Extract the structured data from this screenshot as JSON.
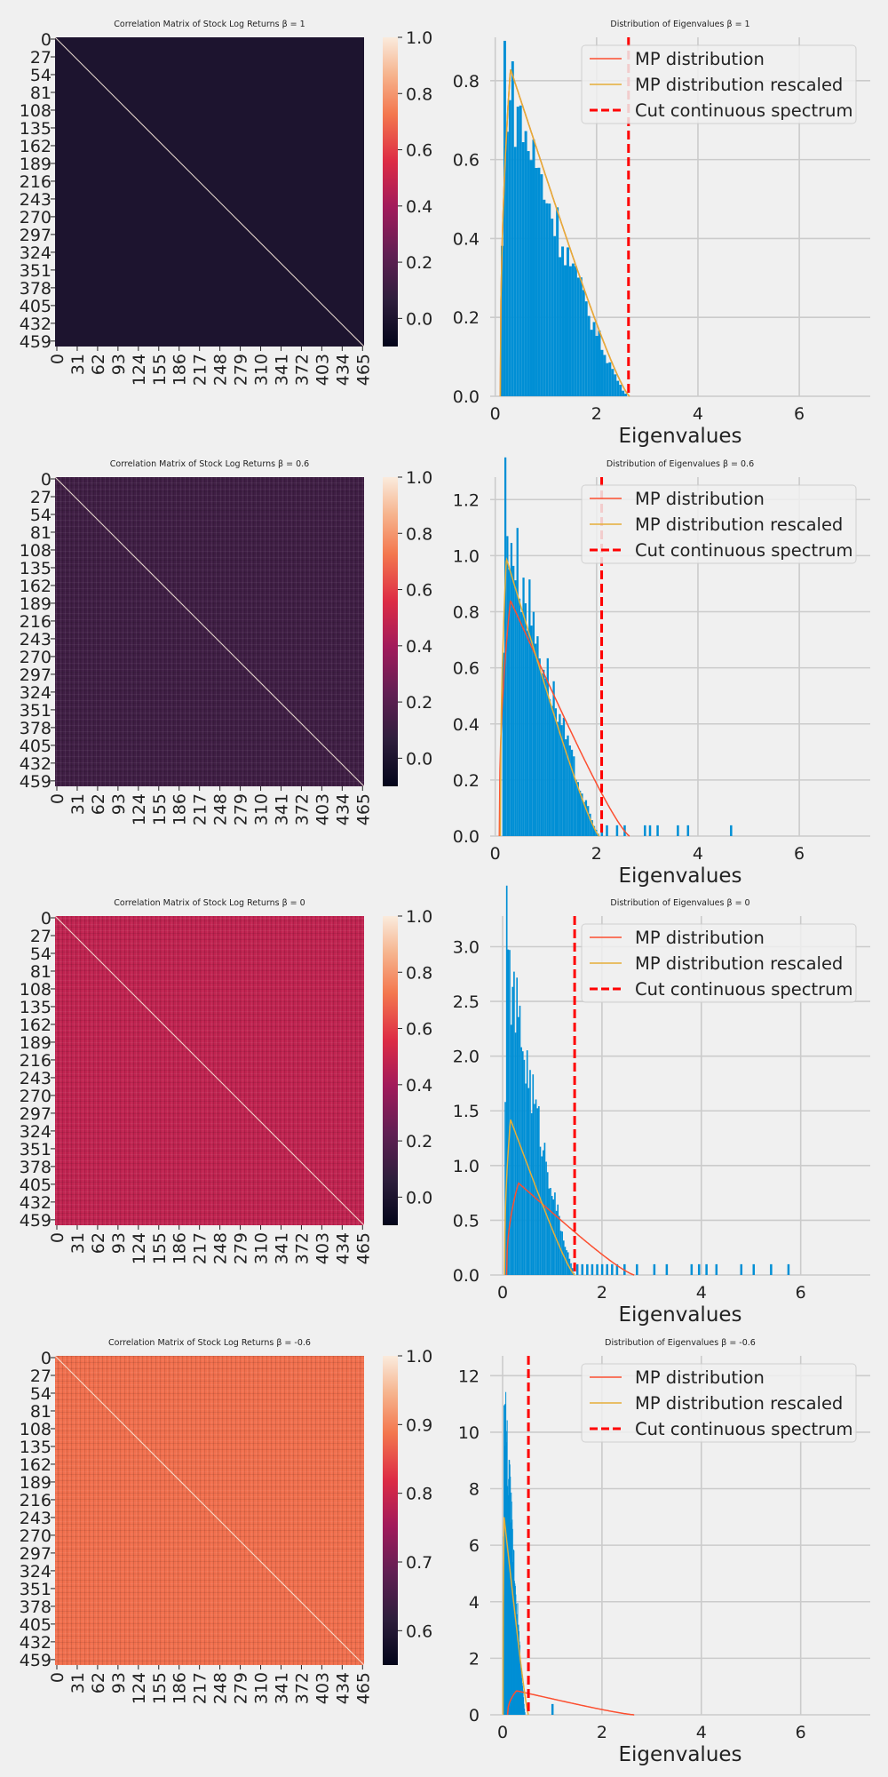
{
  "heatmap_ticks": [
    "0",
    "27",
    "54",
    "81",
    "108",
    "135",
    "162",
    "189",
    "216",
    "243",
    "270",
    "297",
    "324",
    "351",
    "378",
    "405",
    "432",
    "459"
  ],
  "heatmap_xticks": [
    "0",
    "31",
    "62",
    "93",
    "124",
    "155",
    "186",
    "217",
    "248",
    "279",
    "310",
    "341",
    "372",
    "403",
    "434",
    "465"
  ],
  "legend": {
    "mp": "MP distribution",
    "mp_rescaled": "MP distribution rescaled",
    "cut": "Cut continuous spectrum"
  },
  "colors": {
    "hist": "#008fd5",
    "mp": "#fc4f30",
    "mp_rescaled": "#e5ae38",
    "cut": "#ff0000",
    "background": "#f0f0f0"
  },
  "chart_data": [
    {
      "type": "heatmap",
      "title": "Correlation Matrix of Stock Log Returns β = 1",
      "colorbar_ticks": [
        "0.0",
        "0.2",
        "0.4",
        "0.6",
        "0.8",
        "1.0"
      ],
      "colorbar_range": [
        -0.1,
        1.0
      ],
      "background_value": 0.0
    },
    {
      "type": "bar",
      "title": "Distribution of Eigenvalues β = 1",
      "xlabel": "Eigenvalues",
      "xlim": [
        -0.1,
        7.4
      ],
      "ylim": [
        0,
        0.91
      ],
      "xticks": [
        0,
        2,
        4,
        6
      ],
      "yticks": [
        0.0,
        0.2,
        0.4,
        0.6,
        0.8
      ],
      "cut": 2.63,
      "hist": {
        "start": 0.11,
        "end": 2.6,
        "peak_x": 0.25,
        "peak_y": 0.86,
        "outliers": []
      },
      "mp": {
        "lo": 0.1,
        "hi": 2.65,
        "peak_x": 0.3,
        "peak_y": 0.83
      },
      "mp_rescaled": {
        "lo": 0.1,
        "hi": 2.65,
        "peak_x": 0.3,
        "peak_y": 0.83
      },
      "legend_position": "top-right"
    },
    {
      "type": "heatmap",
      "title": "Correlation Matrix of Stock Log Returns β = 0.6",
      "colorbar_ticks": [
        "0.0",
        "0.2",
        "0.4",
        "0.6",
        "0.8",
        "1.0"
      ],
      "colorbar_range": [
        -0.1,
        1.0
      ],
      "background_value": 0.12
    },
    {
      "type": "bar",
      "title": "Distribution of Eigenvalues β = 0.6",
      "xlabel": "Eigenvalues",
      "xlim": [
        -0.1,
        7.4
      ],
      "ylim": [
        0,
        1.28
      ],
      "xticks": [
        0,
        2,
        4,
        6
      ],
      "yticks": [
        0.0,
        0.2,
        0.4,
        0.6,
        0.8,
        1.0,
        1.2
      ],
      "cut": 2.1,
      "hist": {
        "start": 0.14,
        "end": 2.05,
        "peak_x": 0.2,
        "peak_y": 1.23,
        "outliers": [
          2.1,
          2.2,
          2.4,
          2.55,
          2.95,
          3.05,
          3.2,
          3.6,
          3.8,
          4.65
        ]
      },
      "mp": {
        "lo": 0.08,
        "hi": 2.65,
        "peak_x": 0.3,
        "peak_y": 0.84
      },
      "mp_rescaled": {
        "lo": 0.1,
        "hi": 2.05,
        "peak_x": 0.22,
        "peak_y": 0.99
      },
      "legend_position": "top-right"
    },
    {
      "type": "heatmap",
      "title": "Correlation Matrix of Stock Log Returns β = 0",
      "colorbar_ticks": [
        "0.0",
        "0.2",
        "0.4",
        "0.6",
        "0.8",
        "1.0"
      ],
      "colorbar_range": [
        -0.1,
        1.0
      ],
      "background_value": 0.48
    },
    {
      "type": "bar",
      "title": "Distribution of Eigenvalues β = 0",
      "xlabel": "Eigenvalues",
      "xlim": [
        -0.25,
        7.4
      ],
      "ylim": [
        0,
        3.28
      ],
      "xticks": [
        0,
        2,
        4,
        6
      ],
      "yticks": [
        0.0,
        0.5,
        1.0,
        1.5,
        2.0,
        2.5,
        3.0
      ],
      "cut": 1.45,
      "hist": {
        "start": 0.04,
        "end": 1.45,
        "peak_x": 0.08,
        "peak_y": 3.1,
        "outliers": [
          1.5,
          1.6,
          1.7,
          1.8,
          1.9,
          2.0,
          2.1,
          2.2,
          2.3,
          2.45,
          2.7,
          3.05,
          3.3,
          3.8,
          3.95,
          4.1,
          4.3,
          4.8,
          5.05,
          5.4,
          5.75
        ]
      },
      "mp": {
        "lo": 0.08,
        "hi": 2.65,
        "peak_x": 0.32,
        "peak_y": 0.84
      },
      "mp_rescaled": {
        "lo": 0.04,
        "hi": 1.45,
        "peak_x": 0.16,
        "peak_y": 1.42
      },
      "legend_position": "top-right"
    },
    {
      "type": "heatmap",
      "title": "Correlation Matrix of Stock Log Returns β = -0.6",
      "colorbar_ticks": [
        "0.6",
        "0.7",
        "0.8",
        "0.9",
        "1.0"
      ],
      "colorbar_range": [
        0.55,
        1.0
      ],
      "background_value": 0.88
    },
    {
      "type": "bar",
      "title": "Distribution of Eigenvalues β = -0.6",
      "xlabel": "Eigenvalues",
      "xlim": [
        -0.25,
        7.4
      ],
      "ylim": [
        0,
        12.7
      ],
      "xticks": [
        0,
        2,
        4,
        6
      ],
      "yticks": [
        0,
        2,
        4,
        6,
        8,
        10,
        12
      ],
      "cut": 0.52,
      "hist": {
        "start": 0.01,
        "end": 0.45,
        "peak_x": 0.03,
        "peak_y": 12.2,
        "outliers": [
          1.0
        ]
      },
      "mp": {
        "lo": 0.1,
        "hi": 2.65,
        "peak_x": 0.28,
        "peak_y": 0.85
      },
      "mp_rescaled": {
        "lo": 0.01,
        "hi": 0.52,
        "peak_x": 0.03,
        "peak_y": 7.0
      },
      "legend_position": "top-right"
    }
  ]
}
